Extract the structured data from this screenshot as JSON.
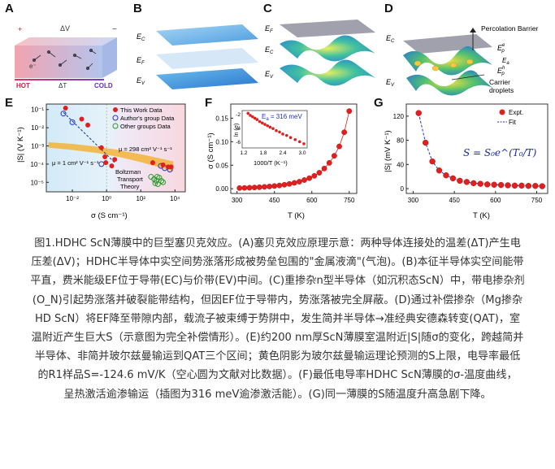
{
  "panel_letters": [
    "A",
    "B",
    "C",
    "D",
    "E",
    "F",
    "G"
  ],
  "panelA": {
    "plus": "+",
    "minus": "−",
    "dV": "ΔV",
    "dT": "ΔT",
    "hot": "HOT",
    "cold": "COLD",
    "electron": "e⁻"
  },
  "panelB": {
    "ec": "E",
    "ec_sub": "C",
    "ef": "E",
    "ef_sub": "F",
    "ev": "E",
    "ev_sub": "V"
  },
  "panelC": {
    "ef": "E",
    "ef_sub": "F",
    "ec": "E",
    "ec_sub": "C",
    "ev": "E",
    "ev_sub": "V"
  },
  "panelD": {
    "barrier": "Percolation Barrier",
    "ec": "E",
    "ec_sub": "C",
    "ea": "E",
    "ea_sub": "a",
    "epe": "E",
    "epe_sub": "p",
    "epe_sup": "e",
    "eph": "E",
    "eph_sub": "p",
    "eph_sup": "h",
    "droplets_1": "Carrier",
    "droplets_2": "droplets",
    "ev": "E",
    "ev_sub": "V"
  },
  "chart_data": [
    {
      "panel": "E",
      "type": "scatter",
      "xscale": "log",
      "yscale": "log",
      "xlabel": "σ (S cm⁻¹)",
      "ylabel": "|S| (V K⁻¹)",
      "xlim": [
        0.0003,
        40000
      ],
      "ylim": [
        3e-06,
        0.2
      ],
      "xticks": [
        "10⁻²",
        "10⁰",
        "10²",
        "10⁴"
      ],
      "yticks": [
        "10⁻¹",
        "10⁻²",
        "10⁻³",
        "10⁻⁴",
        "10⁻⁵"
      ],
      "legend": [
        "This Work Data",
        "Author's group Data",
        "Other groups Data"
      ],
      "annotations": {
        "mu_high": "μ = 298 cm² V⁻¹ s⁻¹",
        "mu_low": "μ = 1 cm² V⁻¹ s⁻¹",
        "theory_1": "Boltzman",
        "theory_2": "Transport",
        "theory_3": "Theory"
      },
      "series": [
        {
          "name": "This Work Data",
          "x": [
            0.004,
            0.035,
            0.08,
            0.8,
            3,
            0.5,
            0.9,
            2,
            500,
            2000,
            4000,
            6000
          ],
          "y": [
            0.12,
            0.03,
            0.014,
            0.00025,
            0.00018,
            0.0008,
            0.00012,
            8e-05,
            0.00012,
            9e-05,
            7e-05,
            7e-05
          ]
        },
        {
          "name": "Author's group Data",
          "x": [
            0.003,
            0.01,
            0.5,
            1500,
            2500,
            5000
          ],
          "y": [
            0.06,
            0.02,
            0.0001,
            8e-05,
            6e-05,
            5e-05
          ]
        },
        {
          "name": "Other groups Data",
          "x": [
            400,
            600,
            800,
            900,
            1200,
            1600,
            2000,
            700,
            1000
          ],
          "y": [
            2e-05,
            1.5e-05,
            1.2e-05,
            2e-05,
            1.8e-05,
            1.2e-05,
            1e-05,
            9e-06,
            8e-06
          ]
        }
      ]
    },
    {
      "panel": "F",
      "type": "scatter",
      "xlabel": "T (K)",
      "ylabel": "σ (S cm⁻¹)",
      "xlim": [
        275,
        780
      ],
      "ylim": [
        -0.01,
        0.18
      ],
      "xticks": [
        "300",
        "450",
        "600",
        "750"
      ],
      "yticks": [
        "0.00",
        "0.05",
        "0.10",
        "0.15"
      ],
      "series": [
        {
          "name": "",
          "x": [
            310,
            330,
            350,
            370,
            390,
            410,
            430,
            450,
            470,
            490,
            510,
            530,
            550,
            570,
            590,
            610,
            630,
            650,
            670,
            690,
            710,
            730,
            750
          ],
          "y": [
            0.0015,
            0.0018,
            0.0022,
            0.0027,
            0.0033,
            0.004,
            0.0048,
            0.0058,
            0.007,
            0.0085,
            0.0103,
            0.0125,
            0.015,
            0.0185,
            0.0225,
            0.0275,
            0.034,
            0.043,
            0.055,
            0.07,
            0.09,
            0.12,
            0.165
          ]
        }
      ],
      "inset": {
        "type": "scatter",
        "xlabel": "1000/T (K⁻¹)",
        "ylabel": "ln (σ)",
        "annotation_main": "E",
        "annotation_sub": "a",
        "annotation_rest": " = 316 meV",
        "xlim": [
          1.15,
          3.15
        ],
        "ylim": [
          -6.8,
          -1.4
        ],
        "xticks": [
          "1.2",
          "1.8",
          "2.4",
          "3.0"
        ],
        "yticks": [
          "-2",
          "-4",
          "-6"
        ],
        "x": [
          1.33,
          1.4,
          1.47,
          1.54,
          1.61,
          1.69,
          1.77,
          1.85,
          1.93,
          2.01,
          2.1,
          2.2,
          2.3,
          2.4,
          2.52,
          2.64,
          2.78,
          2.92,
          3.05
        ],
        "y": [
          -1.8,
          -2.1,
          -2.3,
          -2.5,
          -2.7,
          -3.0,
          -3.2,
          -3.4,
          -3.6,
          -3.8,
          -4.0,
          -4.3,
          -4.5,
          -4.8,
          -5.0,
          -5.3,
          -5.6,
          -5.9,
          -6.2
        ]
      }
    },
    {
      "panel": "G",
      "type": "scatter",
      "xlabel": "T (K)",
      "ylabel": "|S| (mV K⁻¹)",
      "xlim": [
        275,
        790
      ],
      "ylim": [
        -8,
        140
      ],
      "xticks": [
        "300",
        "450",
        "600",
        "750"
      ],
      "yticks": [
        "0",
        "40",
        "80",
        "120"
      ],
      "legend": [
        "Expt.",
        "Fit"
      ],
      "formula": "S = S₀e^(T₀/T)",
      "series": [
        {
          "name": "Expt.",
          "x": [
            320,
            345,
            370,
            395,
            420,
            445,
            470,
            495,
            520,
            545,
            570,
            595,
            620,
            645,
            670,
            695,
            720,
            745,
            770
          ],
          "y": [
            125,
            76,
            45,
            30,
            22,
            17,
            13,
            11,
            9,
            8,
            7,
            6.5,
            6,
            5.5,
            5,
            5,
            4.5,
            4.5,
            4
          ]
        }
      ]
    }
  ],
  "caption_lines": [
    "图1.HDHC ScN薄膜中的巨型塞贝克效应。(A)塞贝克效应原理示意：两种导体连接处的温差(ΔT)产生电",
    "压差(ΔV)；HDHC半导体中实空间势涨落形成被势垒包围的\"金属液滴\"(气泡)。(B)本征半导体实空间能带",
    "平直，费米能级EF位于导带(EC)与价带(EV)中间。(C)重掺杂n型半导体（如沉积态ScN）中，带电掺杂剂",
    "(O_N)引起势涨落并破裂能带结构，但因EF位于导带内，势涨落被完全屏蔽。(D)通过补偿掺杂（Mg掺杂",
    "HD ScN）将EF降至带隙内部，载流子被束缚于势阱中，发生简并半导体→准经典安德森转变(QAT)，室",
    "温附近产生巨大S（示意图为完全补偿情形）。(E)约200 nm厚ScN薄膜室温附近|S|随σ的变化，跨越简并",
    "半导体、非简并玻尔兹曼输运到QAT三个区间；黄色阴影为玻尔兹曼输运理论预测的S上限，电导率最低",
    "的R1样品S=-124.6 mV/K（空心圆为文献对比数据）。(F)最低电导率HDHC ScN薄膜的σ-温度曲线，",
    "呈热激活逾渗输运（插图为316 meV逾渗激活能）。(G)同一薄膜的S随温度升高急剧下降。"
  ],
  "colors": {
    "red": "#e0201e",
    "blue": "#2233cc",
    "green": "#2a9a2a",
    "band": "#f2b02a",
    "hot": "#e0305a",
    "cold": "#7a3ad0"
  }
}
